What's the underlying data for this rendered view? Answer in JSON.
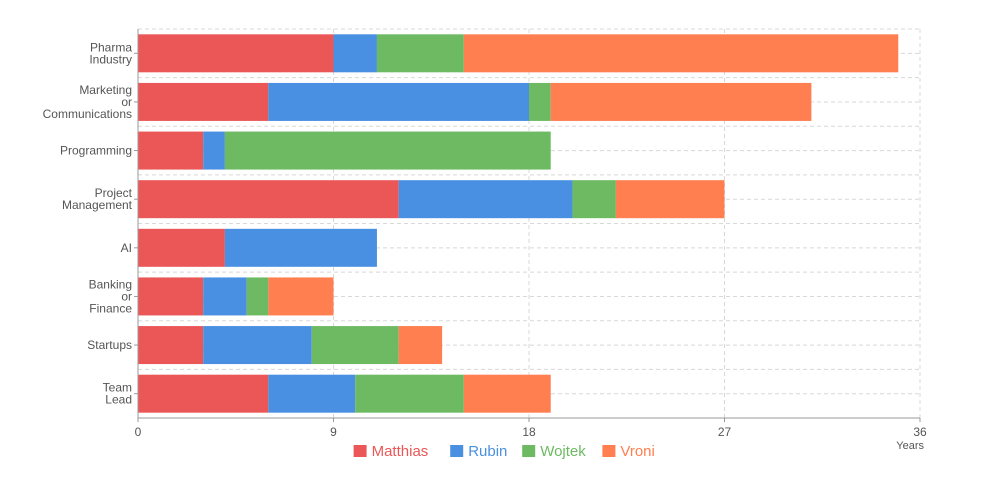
{
  "chart_data": {
    "type": "bar",
    "orientation": "horizontal",
    "stacked": true,
    "categories": [
      [
        "Pharma",
        "Industry"
      ],
      [
        "Marketing",
        "or",
        "Communications"
      ],
      [
        "Programming"
      ],
      [
        "Project",
        "Management"
      ],
      [
        "AI"
      ],
      [
        "Banking",
        "or",
        "Finance"
      ],
      [
        "Startups"
      ],
      [
        "Team",
        "Lead"
      ]
    ],
    "series": [
      {
        "name": "Matthias",
        "color": "#EB5757",
        "values": [
          9,
          6,
          3,
          12,
          4,
          3,
          3,
          6
        ]
      },
      {
        "name": "Rubin",
        "color": "#4A90E2",
        "values": [
          2,
          12,
          1,
          8,
          7,
          2,
          5,
          4
        ]
      },
      {
        "name": "Wojtek",
        "color": "#6DBA63",
        "values": [
          4,
          1,
          15,
          2,
          0,
          1,
          4,
          5
        ]
      },
      {
        "name": "Vroni",
        "color": "#FF7F50",
        "values": [
          20,
          12,
          0,
          5,
          0,
          3,
          2,
          4
        ]
      }
    ],
    "xlim": [
      0,
      36
    ],
    "xticks": [
      "0",
      "9",
      "18",
      "27",
      "36"
    ],
    "xlabel": "Years",
    "grid": true,
    "legend": "bottom-center"
  }
}
